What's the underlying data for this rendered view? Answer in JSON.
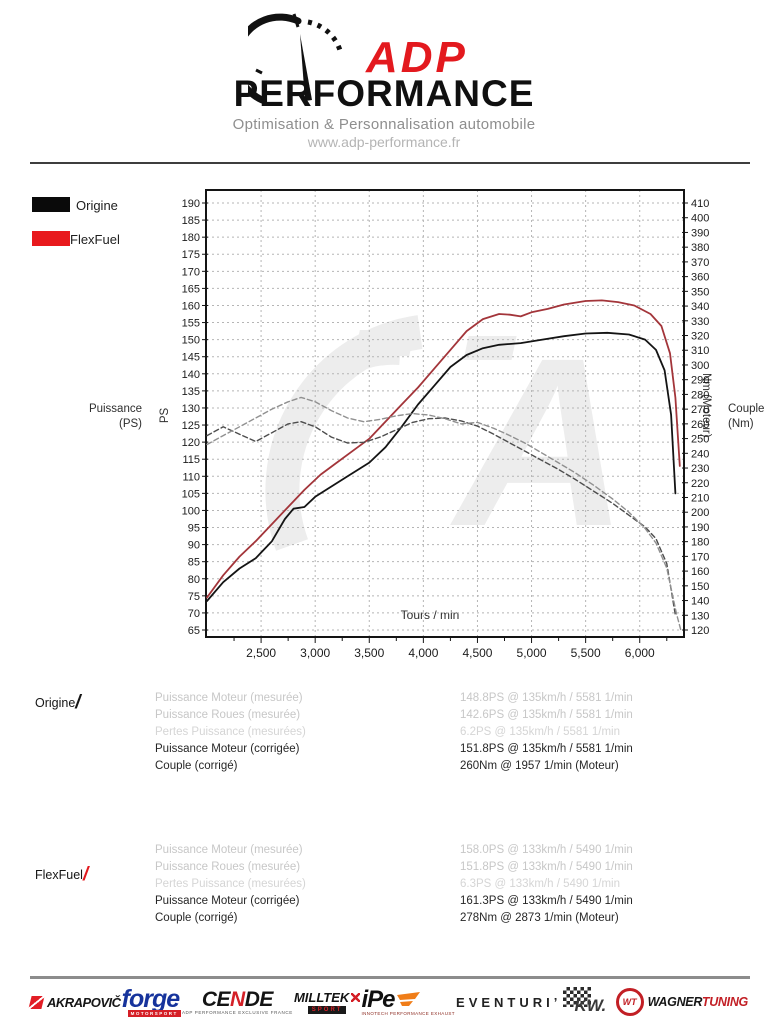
{
  "header": {
    "brand_top": "ADP",
    "brand_bottom": "PERFORMANCE",
    "tagline": "Optimisation & Personnalisation automobile",
    "website": "www.adp-performance.fr"
  },
  "legend": [
    {
      "label": "Origine",
      "color": "#0a0a0a"
    },
    {
      "label": "FlexFuel",
      "color": "#e8191d"
    }
  ],
  "chart_data": {
    "type": "line",
    "x_axis": {
      "label": "Tours / min",
      "min": 2000,
      "max": 6400,
      "tick_values": [
        2500,
        3000,
        3500,
        4000,
        4500,
        5000,
        5500,
        6000
      ],
      "tick_labels": [
        "2,500",
        "3,000",
        "3,500",
        "4,000",
        "4,500",
        "5,000",
        "5,500",
        "6,000"
      ],
      "minor_tick_step": 250
    },
    "left_axis": {
      "title": "Puissance",
      "unit": "(PS)",
      "axis_text": "PS",
      "min": 65,
      "max": 190,
      "step": 5
    },
    "right_axis": {
      "title": "Couple",
      "unit": "(Nm)",
      "axis_text": "Nm (Moteur)",
      "min": 120,
      "max": 410,
      "step": 10
    },
    "grid": true,
    "series": [
      {
        "name": "Origine Puissance",
        "axis": "left",
        "style": "solid",
        "color": "#141414",
        "points": [
          [
            2000,
            73.5
          ],
          [
            2150,
            79
          ],
          [
            2300,
            83
          ],
          [
            2450,
            86
          ],
          [
            2600,
            91
          ],
          [
            2720,
            97.5
          ],
          [
            2800,
            100.5
          ],
          [
            2900,
            101
          ],
          [
            3000,
            104
          ],
          [
            3150,
            107
          ],
          [
            3300,
            110
          ],
          [
            3500,
            114
          ],
          [
            3650,
            118.5
          ],
          [
            3800,
            124.5
          ],
          [
            3950,
            131
          ],
          [
            4100,
            136.5
          ],
          [
            4250,
            142
          ],
          [
            4400,
            145.5
          ],
          [
            4550,
            147.5
          ],
          [
            4700,
            148.5
          ],
          [
            4900,
            149
          ],
          [
            5100,
            150
          ],
          [
            5300,
            151
          ],
          [
            5500,
            151.8
          ],
          [
            5700,
            152
          ],
          [
            5900,
            151.5
          ],
          [
            6050,
            150
          ],
          [
            6150,
            147
          ],
          [
            6230,
            141
          ],
          [
            6290,
            128
          ],
          [
            6330,
            105
          ]
        ]
      },
      {
        "name": "FlexFuel Puissance",
        "axis": "left",
        "style": "solid",
        "color": "#a3353a",
        "points": [
          [
            2000,
            74.5
          ],
          [
            2150,
            81
          ],
          [
            2300,
            86.5
          ],
          [
            2450,
            91
          ],
          [
            2600,
            96
          ],
          [
            2750,
            101
          ],
          [
            2900,
            106
          ],
          [
            3050,
            110.5
          ],
          [
            3200,
            114
          ],
          [
            3350,
            117.5
          ],
          [
            3500,
            121
          ],
          [
            3650,
            126
          ],
          [
            3800,
            131
          ],
          [
            3950,
            136
          ],
          [
            4100,
            141.5
          ],
          [
            4250,
            147
          ],
          [
            4400,
            152.5
          ],
          [
            4550,
            156
          ],
          [
            4700,
            157.5
          ],
          [
            4800,
            157.3
          ],
          [
            4900,
            156.8
          ],
          [
            5000,
            158
          ],
          [
            5150,
            159
          ],
          [
            5300,
            160.3
          ],
          [
            5500,
            161.3
          ],
          [
            5650,
            161.5
          ],
          [
            5800,
            161
          ],
          [
            5950,
            160
          ],
          [
            6100,
            157.5
          ],
          [
            6200,
            154
          ],
          [
            6280,
            146
          ],
          [
            6330,
            133
          ],
          [
            6370,
            113
          ]
        ]
      },
      {
        "name": "Origine Couple",
        "axis": "right",
        "style": "dashed",
        "color": "#4d4d4d",
        "points": [
          [
            2000,
            252
          ],
          [
            2150,
            258
          ],
          [
            2300,
            253
          ],
          [
            2450,
            248
          ],
          [
            2600,
            254
          ],
          [
            2750,
            260
          ],
          [
            2870,
            261.5
          ],
          [
            3000,
            258
          ],
          [
            3150,
            251
          ],
          [
            3300,
            247
          ],
          [
            3450,
            247.5
          ],
          [
            3600,
            251
          ],
          [
            3750,
            256
          ],
          [
            3900,
            261
          ],
          [
            4050,
            263.5
          ],
          [
            4200,
            264
          ],
          [
            4350,
            262
          ],
          [
            4500,
            258.5
          ],
          [
            4650,
            253
          ],
          [
            4800,
            247
          ],
          [
            4950,
            241
          ],
          [
            5100,
            235
          ],
          [
            5250,
            229
          ],
          [
            5400,
            222.5
          ],
          [
            5580,
            214
          ],
          [
            5750,
            206
          ],
          [
            5900,
            198
          ],
          [
            6050,
            190
          ],
          [
            6150,
            182
          ],
          [
            6250,
            165
          ],
          [
            6330,
            130
          ]
        ]
      },
      {
        "name": "FlexFuel Couple",
        "axis": "right",
        "style": "dashed",
        "color": "#909090",
        "points": [
          [
            2000,
            246
          ],
          [
            2150,
            252
          ],
          [
            2300,
            258
          ],
          [
            2450,
            264
          ],
          [
            2600,
            270
          ],
          [
            2750,
            275
          ],
          [
            2870,
            278
          ],
          [
            3000,
            275
          ],
          [
            3150,
            269
          ],
          [
            3300,
            264
          ],
          [
            3450,
            261.5
          ],
          [
            3600,
            263
          ],
          [
            3750,
            265.5
          ],
          [
            3900,
            267
          ],
          [
            4050,
            266
          ],
          [
            4200,
            263.5
          ],
          [
            4350,
            260
          ],
          [
            4500,
            261
          ],
          [
            4650,
            257
          ],
          [
            4800,
            252
          ],
          [
            4950,
            246.5
          ],
          [
            5100,
            240
          ],
          [
            5250,
            233.5
          ],
          [
            5400,
            227
          ],
          [
            5580,
            218
          ],
          [
            5750,
            209
          ],
          [
            5900,
            200
          ],
          [
            6050,
            189
          ],
          [
            6150,
            179
          ],
          [
            6250,
            162
          ],
          [
            6340,
            131
          ],
          [
            6380,
            120
          ]
        ]
      }
    ]
  },
  "results": [
    {
      "name": "Origine",
      "slash": "/",
      "slash_color": "#161616",
      "rows": [
        {
          "label": "Puissance Moteur (mesurée)",
          "value": "148.8PS @ 135km/h / 5581 1/min"
        },
        {
          "label": "Puissance Roues (mesurée)",
          "value": "142.6PS @ 135km/h / 5581 1/min"
        },
        {
          "label": "Pertes Puissance (mesurées)",
          "value": "6.2PS @ 135km/h / 5581 1/min"
        },
        {
          "label": "Puissance Moteur (corrigée)",
          "value": "151.8PS @ 135km/h / 5581 1/min"
        },
        {
          "label": "Couple (corrigé)",
          "value": "260Nm @ 1957 1/min (Moteur)"
        }
      ]
    },
    {
      "name": "FlexFuel",
      "slash": "/",
      "slash_color": "#e3191e",
      "rows": [
        {
          "label": "Puissance Moteur (mesurée)",
          "value": "158.0PS @ 133km/h / 5490 1/min"
        },
        {
          "label": "Puissance Roues (mesurée)",
          "value": "151.8PS @ 133km/h / 5490 1/min"
        },
        {
          "label": "Pertes Puissance (mesurées)",
          "value": "6.3PS @ 133km/h / 5490 1/min"
        },
        {
          "label": "Puissance Moteur (corrigée)",
          "value": "161.3PS @ 133km/h / 5490 1/min"
        },
        {
          "label": "Couple (corrigé)",
          "value": "278Nm @ 2873 1/min (Moteur)"
        }
      ]
    }
  ],
  "footer": {
    "partners": [
      {
        "name": "AKRAPOVIČ"
      },
      {
        "name": "forge",
        "sub": "MOTORSPORT"
      },
      {
        "p1": "CE",
        "p2": "N",
        "p3": "DE",
        "sub": "ADP PERFORMANCE EXCLUSIVE FRANCE"
      },
      {
        "name": "MILLTEK",
        "sub": "SPORT"
      },
      {
        "name": "iPe",
        "sub": "INNOTECH PERFORMANCE EXHAUST"
      },
      {
        "name": "EVENTURI’"
      },
      {
        "name": "KW."
      },
      {
        "monogram": "WT",
        "name": "WAGNER",
        "name2": "TUNING"
      }
    ]
  }
}
